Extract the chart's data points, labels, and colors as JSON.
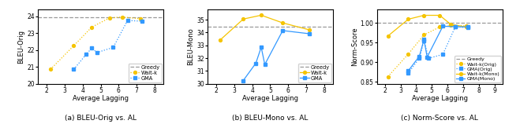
{
  "fig_width": 6.4,
  "fig_height": 1.72,
  "dpi": 100,
  "subplot_a": {
    "caption": "(a) BLEU-Orig vs. AL",
    "xlabel": "Average Lagging",
    "ylabel": "BLEU-Orig",
    "xlim": [
      1.5,
      8.5
    ],
    "ylim": [
      20,
      24.4
    ],
    "yticks": [
      20,
      21,
      22,
      23,
      24
    ],
    "xticks": [
      2,
      3,
      4,
      5,
      6,
      7,
      8
    ],
    "greedy_y": 23.95,
    "waitk_x": [
      2.2,
      3.5,
      4.5,
      5.5,
      6.2,
      7.2
    ],
    "waitk_y": [
      20.85,
      22.25,
      23.35,
      23.9,
      23.95,
      23.85
    ],
    "gma_x": [
      3.5,
      4.2,
      4.5,
      4.8,
      5.7,
      6.5,
      7.3
    ],
    "gma_y": [
      20.85,
      21.75,
      22.1,
      21.85,
      22.15,
      23.75,
      23.7
    ]
  },
  "subplot_b": {
    "caption": "(b) BLEU-Mono vs. AL",
    "xlabel": "Average Lagging",
    "ylabel": "BLEU-Mono",
    "xlim": [
      1.5,
      8.5
    ],
    "ylim": [
      30,
      35.8
    ],
    "yticks": [
      30,
      31,
      32,
      33,
      34,
      35
    ],
    "xticks": [
      2,
      3,
      4,
      5,
      6,
      7,
      8
    ],
    "greedy_y": 34.45,
    "waitk_x": [
      2.2,
      3.5,
      4.5,
      5.7,
      7.2
    ],
    "waitk_y": [
      33.4,
      35.05,
      35.35,
      34.75,
      34.2
    ],
    "gma_x": [
      3.5,
      4.2,
      4.5,
      4.7,
      5.7,
      7.2
    ],
    "gma_y": [
      30.25,
      31.6,
      32.85,
      31.5,
      34.15,
      33.9
    ]
  },
  "subplot_c": {
    "caption": "(c) Norm-Score vs. AL",
    "xlabel": "Average Lagging",
    "ylabel": "Norm-Score",
    "xlim": [
      1.5,
      9.5
    ],
    "ylim": [
      0.845,
      1.035
    ],
    "yticks": [
      0.85,
      0.9,
      0.95,
      1.0
    ],
    "xticks": [
      2,
      3,
      4,
      5,
      6,
      7,
      8,
      9
    ],
    "greedy_y": 1.0,
    "waitk_orig_x": [
      2.2,
      3.5,
      4.5,
      5.5,
      6.2,
      7.2
    ],
    "waitk_orig_y": [
      0.863,
      0.921,
      0.97,
      0.99,
      0.994,
      0.993
    ],
    "gma_orig_x": [
      3.5,
      4.2,
      4.5,
      4.8,
      5.7,
      6.5,
      7.3
    ],
    "gma_orig_y": [
      0.872,
      0.91,
      0.955,
      0.91,
      0.92,
      0.991,
      0.988
    ],
    "waitk_mono_x": [
      2.2,
      3.5,
      4.5,
      5.5,
      6.2,
      7.2
    ],
    "waitk_mono_y": [
      0.967,
      1.01,
      1.02,
      1.02,
      0.997,
      0.99
    ],
    "gma_mono_x": [
      3.5,
      4.2,
      4.5,
      4.7,
      5.7,
      6.5,
      7.3
    ],
    "gma_mono_y": [
      0.878,
      0.915,
      0.958,
      0.913,
      0.992,
      0.991,
      0.99
    ]
  },
  "color_yellow": "#F5C400",
  "color_blue": "#3399FF",
  "color_greedy": "#999999"
}
